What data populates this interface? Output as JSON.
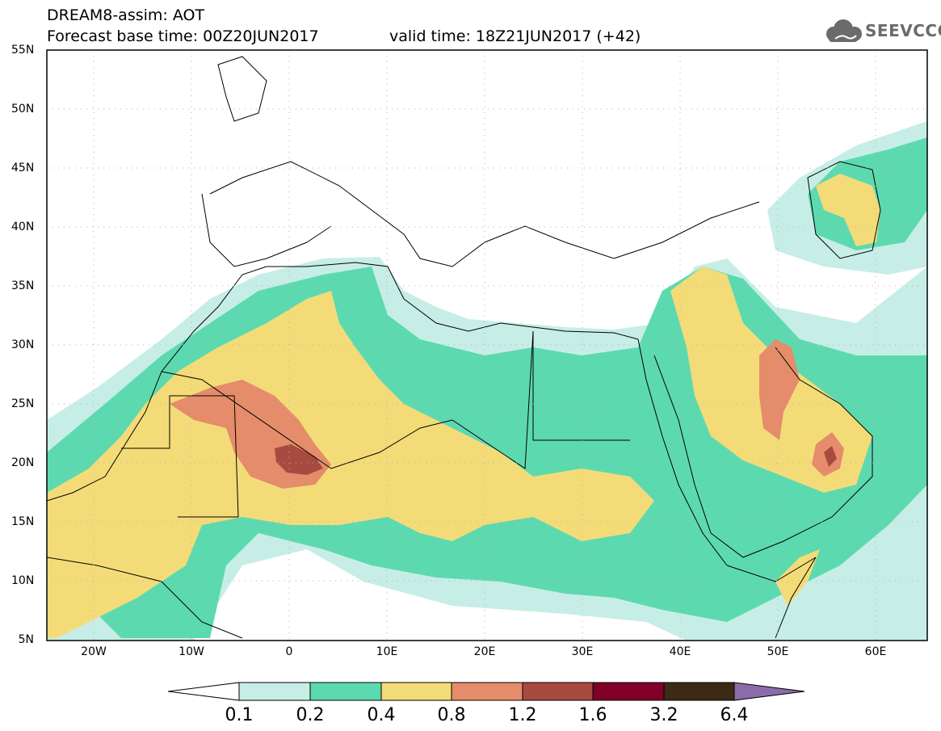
{
  "header": {
    "line1": "DREAM8-assim: AOT",
    "line2": "Forecast base time: 00Z20JUN2017",
    "valid": "valid time: 18Z21JUN2017 (+42)",
    "logo": "SEEVCCC"
  },
  "map": {
    "lat_labels": [
      "55N",
      "50N",
      "45N",
      "40N",
      "35N",
      "30N",
      "25N",
      "20N",
      "15N",
      "10N",
      "5N"
    ],
    "lon_labels": [
      "20W",
      "10W",
      "0",
      "10E",
      "20E",
      "30E",
      "40E",
      "50E",
      "60E"
    ],
    "lat_range": [
      5,
      55
    ],
    "lon_range": [
      -25,
      65
    ],
    "field": "Aerosol Optical Thickness"
  },
  "colorbar": {
    "labels": [
      "0.1",
      "0.2",
      "0.4",
      "0.8",
      "1.2",
      "1.6",
      "3.2",
      "6.4"
    ],
    "colors": [
      "#c6eee6",
      "#5dd9b0",
      "#f3dc78",
      "#e58c6a",
      "#a94a40",
      "#800028",
      "#3d2a16",
      "#8c6ca8"
    ]
  },
  "colors": {
    "low": "#c6eee6",
    "mid": "#5dd9b0",
    "yellow": "#f3dc78",
    "orange": "#e58c6a",
    "red": "#a94a40"
  }
}
